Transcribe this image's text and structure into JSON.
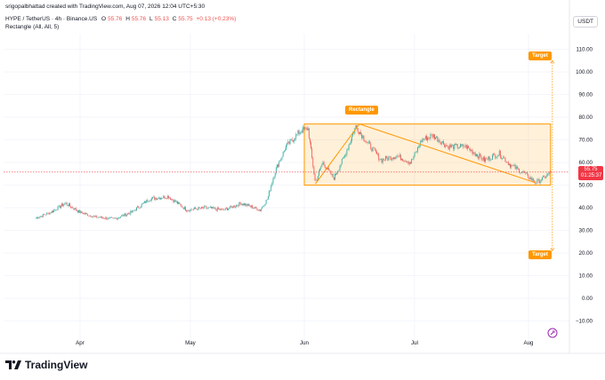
{
  "header": {
    "credit": "srigopalbhattad created with TradingView.com, Aug 07, 2026 12:04 UTC+5:30",
    "symbol": "HYPE / TetherUS · 4h · Binance.US",
    "ohlc": {
      "o_label": "O",
      "o": "55.76",
      "h_label": "H",
      "h": "55.76",
      "l_label": "L",
      "l": "55.13",
      "c_label": "C",
      "c": "55.75",
      "change": "+0.13 (+0.23%)"
    },
    "indicator": "Rectangle (All, All, 5)"
  },
  "currency": "USDT",
  "price_tag": {
    "price": "55.75",
    "countdown": "01:25:37"
  },
  "annotations": {
    "rectangle": "Rectangle",
    "target_up": "Target",
    "target_down": "Target"
  },
  "footer": {
    "brand": "TradingView"
  },
  "colors": {
    "up": "#26a69a",
    "down": "#ef5350",
    "accent": "#ff9800",
    "price_tag": "#f23645"
  },
  "chart_data": {
    "type": "candlestick",
    "title": "",
    "ylim": [
      -10,
      120
    ],
    "y_ticks": [
      "−10.00",
      "0.00",
      "10.00",
      "20.00",
      "30.00",
      "40.00",
      "50.00",
      "60.00",
      "70.00",
      "80.00",
      "90.00",
      "100.00",
      "110.00"
    ],
    "x_ticks": [
      "Apr",
      "May",
      "Jun",
      "Jul",
      "Aug"
    ],
    "close_path": [
      [
        "Mar 20",
        35.5
      ],
      [
        "Mar 24",
        38
      ],
      [
        "Mar 28",
        42
      ],
      [
        "Apr 1",
        38
      ],
      [
        "Apr 5",
        36
      ],
      [
        "Apr 10",
        35
      ],
      [
        "Apr 15",
        38
      ],
      [
        "Apr 20",
        44
      ],
      [
        "Apr 25",
        45
      ],
      [
        "Apr 30",
        39
      ],
      [
        "May 5",
        40
      ],
      [
        "May 10",
        39
      ],
      [
        "May 15",
        42
      ],
      [
        "May 20",
        39
      ],
      [
        "May 22",
        44
      ],
      [
        "May 24",
        56
      ],
      [
        "May 27",
        67
      ],
      [
        "May 31",
        74
      ],
      [
        "Jun 2",
        75
      ],
      [
        "Jun 4",
        51
      ],
      [
        "Jun 6",
        60
      ],
      [
        "Jun 9",
        53
      ],
      [
        "Jun 12",
        63
      ],
      [
        "Jun 15",
        76
      ],
      [
        "Jun 18",
        69
      ],
      [
        "Jun 22",
        61
      ],
      [
        "Jun 26",
        63
      ],
      [
        "Jun 30",
        60
      ],
      [
        "Jul 3",
        70
      ],
      [
        "Jul 6",
        72
      ],
      [
        "Jul 10",
        67
      ],
      [
        "Jul 15",
        67
      ],
      [
        "Jul 20",
        61
      ],
      [
        "Jul 24",
        64
      ],
      [
        "Jul 27",
        59
      ],
      [
        "Jul 31",
        55
      ],
      [
        "Aug 3",
        51
      ],
      [
        "Aug 5",
        53
      ],
      [
        "Aug 7",
        55.75
      ]
    ],
    "rectangle_pattern": {
      "x_start": "Jun 1",
      "x_end": "Aug 7",
      "top": 77,
      "bottom": 50
    },
    "wedge_lines": [
      {
        "from": [
          "Jun 4",
          50.5
        ],
        "to": [
          "Jun 16",
          77
        ]
      },
      {
        "from": [
          "Jun 16",
          77
        ],
        "to": [
          "Aug 3",
          51
        ]
      }
    ],
    "targets": [
      {
        "label": "Target",
        "price": 105
      },
      {
        "label": "Target",
        "price": 21
      }
    ],
    "grid": true,
    "legend": "top-left"
  }
}
